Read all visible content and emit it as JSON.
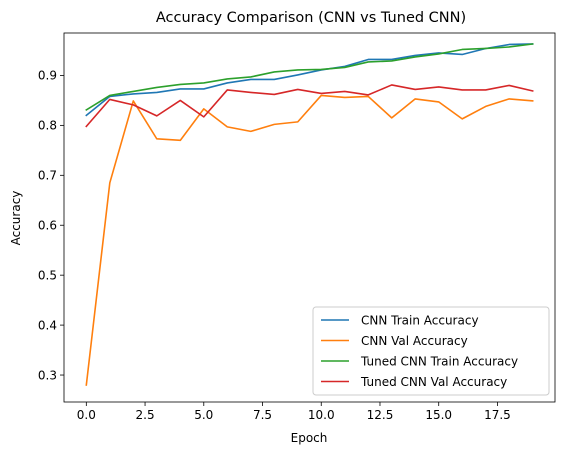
{
  "chart_data": {
    "type": "line",
    "title": "Accuracy Comparison (CNN vs Tuned CNN)",
    "xlabel": "Epoch",
    "ylabel": "Accuracy",
    "xlim": [
      -0.95,
      19.95
    ],
    "ylim": [
      0.246,
      0.985
    ],
    "x": [
      0,
      1,
      2,
      3,
      4,
      5,
      6,
      7,
      8,
      9,
      10,
      11,
      12,
      13,
      14,
      15,
      16,
      17,
      18,
      19
    ],
    "xticks": [
      0.0,
      2.5,
      5.0,
      7.5,
      10.0,
      12.5,
      15.0,
      17.5
    ],
    "xtick_labels": [
      "0.0",
      "2.5",
      "5.0",
      "7.5",
      "10.0",
      "12.5",
      "15.0",
      "17.5"
    ],
    "yticks": [
      0.3,
      0.4,
      0.5,
      0.6,
      0.7,
      0.8,
      0.9
    ],
    "ytick_labels": [
      "0.3",
      "0.4",
      "0.5",
      "0.6",
      "0.7",
      "0.8",
      "0.9"
    ],
    "grid": false,
    "legend_position": "lower-right",
    "series": [
      {
        "name": "CNN Train Accuracy",
        "color": "#1f77b4",
        "values": [
          0.82,
          0.858,
          0.863,
          0.866,
          0.873,
          0.873,
          0.885,
          0.892,
          0.892,
          0.901,
          0.911,
          0.918,
          0.932,
          0.932,
          0.94,
          0.945,
          0.942,
          0.954,
          0.962,
          0.963
        ]
      },
      {
        "name": "CNN Val Accuracy",
        "color": "#ff7f0e",
        "values": [
          0.28,
          0.685,
          0.849,
          0.773,
          0.77,
          0.833,
          0.797,
          0.788,
          0.802,
          0.807,
          0.86,
          0.856,
          0.858,
          0.815,
          0.853,
          0.847,
          0.813,
          0.838,
          0.853,
          0.849
        ]
      },
      {
        "name": "Tuned CNN Train Accuracy",
        "color": "#2ca02c",
        "values": [
          0.831,
          0.86,
          0.868,
          0.876,
          0.882,
          0.885,
          0.893,
          0.897,
          0.907,
          0.911,
          0.912,
          0.916,
          0.927,
          0.929,
          0.937,
          0.943,
          0.952,
          0.954,
          0.957,
          0.963
        ]
      },
      {
        "name": "Tuned CNN Val Accuracy",
        "color": "#d62728",
        "values": [
          0.798,
          0.852,
          0.841,
          0.819,
          0.85,
          0.817,
          0.871,
          0.866,
          0.862,
          0.872,
          0.864,
          0.868,
          0.861,
          0.881,
          0.872,
          0.877,
          0.871,
          0.871,
          0.88,
          0.869
        ]
      }
    ]
  }
}
